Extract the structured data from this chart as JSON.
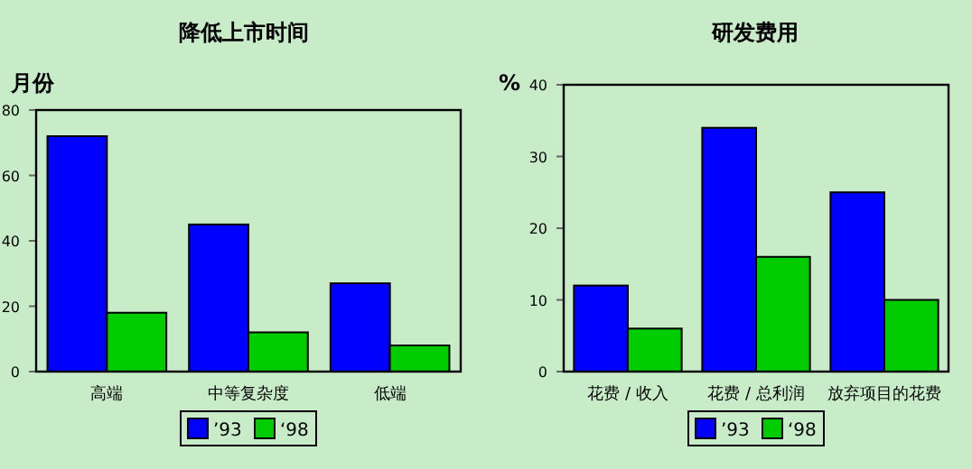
{
  "chart_data": [
    {
      "type": "bar",
      "title": "降低上市时间",
      "ylabel": "月份",
      "categories": [
        "高端",
        "中等复杂度",
        "低端"
      ],
      "series": [
        {
          "name": "’93",
          "color": "#0000ff",
          "values": [
            72,
            45,
            27
          ]
        },
        {
          "name": "‘98",
          "color": "#00cc00",
          "values": [
            18,
            12,
            8
          ]
        }
      ],
      "ylim": [
        0,
        80
      ],
      "yticks": [
        0,
        20,
        40,
        60,
        80
      ],
      "legend": "bottom",
      "grid": false
    },
    {
      "type": "bar",
      "title": "研发费用",
      "ylabel": "%",
      "categories": [
        "花费 / 收入",
        "花费 / 总利润",
        "放弃项目的花费"
      ],
      "series": [
        {
          "name": "’93",
          "color": "#0000ff",
          "values": [
            12,
            34,
            25
          ]
        },
        {
          "name": "‘98",
          "color": "#00cc00",
          "values": [
            6,
            16,
            10
          ]
        }
      ],
      "ylim": [
        0,
        40
      ],
      "yticks": [
        0,
        10,
        20,
        30,
        40
      ],
      "legend": "bottom",
      "grid": false
    }
  ]
}
